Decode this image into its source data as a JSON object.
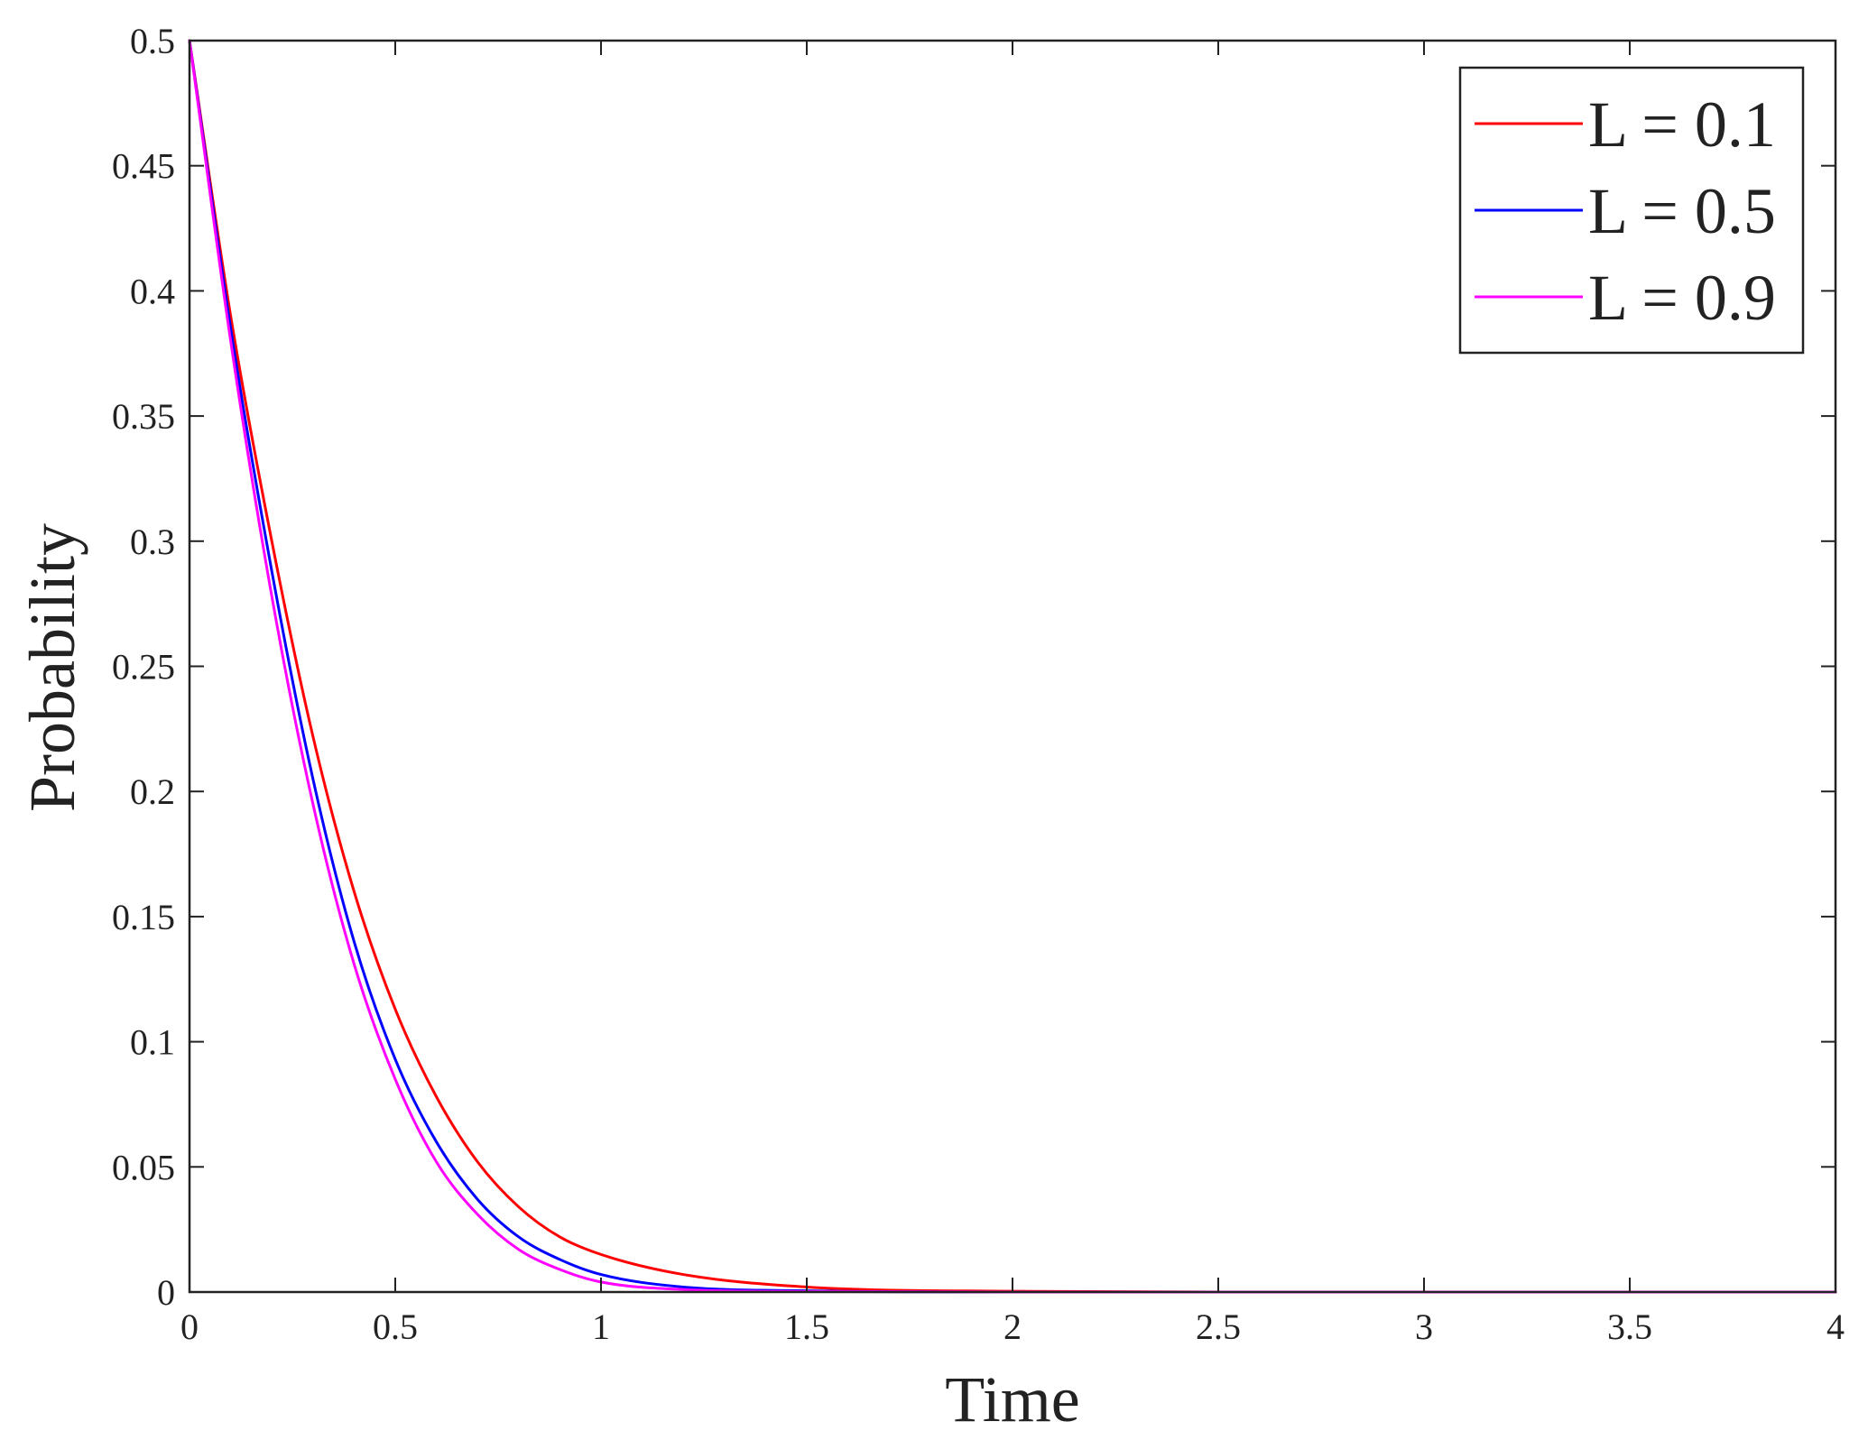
{
  "chart_data": {
    "type": "line",
    "title": "",
    "xlabel": "Time",
    "ylabel": "Probability",
    "xlim": [
      0,
      4
    ],
    "ylim": [
      0,
      0.5
    ],
    "xticks": [
      0,
      0.5,
      1,
      1.5,
      2,
      2.5,
      3,
      3.5,
      4
    ],
    "xtick_labels": [
      "0",
      "0.5",
      "1",
      "1.5",
      "2",
      "2.5",
      "3",
      "3.5",
      "4"
    ],
    "yticks": [
      0,
      0.05,
      0.1,
      0.15,
      0.2,
      0.25,
      0.3,
      0.35,
      0.4,
      0.45,
      0.5
    ],
    "ytick_labels": [
      "0",
      "0.05",
      "0.1",
      "0.15",
      "0.2",
      "0.25",
      "0.3",
      "0.35",
      "0.4",
      "0.45",
      "0.5"
    ],
    "grid": false,
    "legend_position": "top-right",
    "x": [
      0,
      0.1,
      0.2,
      0.3,
      0.4,
      0.5,
      0.6,
      0.7,
      0.8,
      0.9,
      1.0,
      1.2,
      1.5,
      2.0,
      2.5,
      3.0,
      3.5,
      4.0
    ],
    "series": [
      {
        "name": "L = 0.1",
        "color": "#ff0000",
        "values": [
          0.5,
          0.39,
          0.3,
          0.222,
          0.16,
          0.113,
          0.078,
          0.052,
          0.034,
          0.022,
          0.015,
          0.007,
          0.002,
          0.0003,
          0.0,
          0.0,
          0.0,
          0.0
        ]
      },
      {
        "name": "L = 0.5",
        "color": "#0000ff",
        "values": [
          0.5,
          0.385,
          0.288,
          0.205,
          0.14,
          0.093,
          0.06,
          0.037,
          0.022,
          0.013,
          0.007,
          0.002,
          0.0005,
          0.0,
          0.0,
          0.0,
          0.0,
          0.0
        ]
      },
      {
        "name": "L = 0.9",
        "color": "#ff00ff",
        "values": [
          0.5,
          0.38,
          0.278,
          0.195,
          0.131,
          0.085,
          0.052,
          0.031,
          0.017,
          0.009,
          0.004,
          0.001,
          0.0002,
          0.0,
          0.0,
          0.0,
          0.0,
          0.0
        ]
      }
    ]
  }
}
